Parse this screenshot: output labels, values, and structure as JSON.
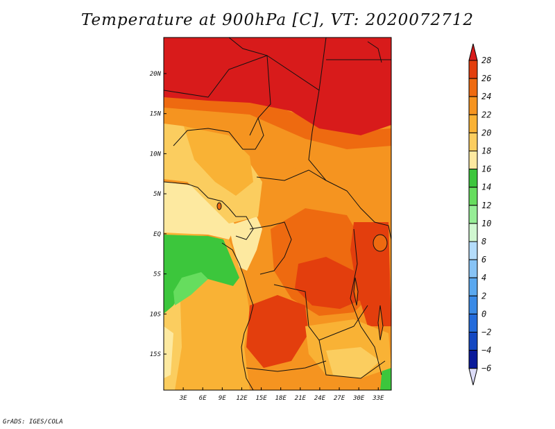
{
  "title": "Temperature at 900hPa [C], VT: 2020072712",
  "credit": "GrADS: IGES/COLA",
  "chart_data": {
    "type": "heatmap",
    "title": "Temperature at 900hPa [C], VT: 2020072712",
    "x_ticks": [
      "3E",
      "6E",
      "9E",
      "12E",
      "15E",
      "18E",
      "21E",
      "24E",
      "27E",
      "30E",
      "33E"
    ],
    "y_ticks": [
      "20N",
      "15N",
      "10N",
      "5N",
      "EQ",
      "5S",
      "10S",
      "15S"
    ],
    "lon_range": [
      0,
      35
    ],
    "lat_range": [
      -19.5,
      24.5
    ],
    "colorbar": {
      "levels": [
        28,
        26,
        24,
        22,
        20,
        18,
        16,
        14,
        12,
        10,
        8,
        6,
        4,
        2,
        0,
        -2,
        -4,
        -6
      ],
      "labels": [
        "28",
        "26",
        "24",
        "22",
        "20",
        "18",
        "16",
        "14",
        "12",
        "10",
        "8",
        "6",
        "4",
        "2",
        "0",
        "−2",
        "−4",
        "−6"
      ],
      "colors": [
        "#d81b1b",
        "#e33e0d",
        "#ee6a10",
        "#f59420",
        "#f9b235",
        "#fbcd5f",
        "#fde9a0",
        "#3cc63c",
        "#66dd5e",
        "#96ed96",
        "#d0f7d0",
        "#b4dcfa",
        "#87c3f5",
        "#5aa8ef",
        "#3a8ae6",
        "#236bdb",
        "#1448c2",
        "#0a1a9a",
        "#140b6e"
      ]
    },
    "regions": {
      "sahara_north": 28,
      "sahel_band": 26,
      "west_africa_interior": 22,
      "gulf_of_guinea_coast": 18,
      "atlantic_equatorial": 14,
      "atlantic_south": 20,
      "congo_basin": 24,
      "east_africa_rift": 26,
      "angola_interior": 26,
      "southern_africa": 22
    }
  }
}
